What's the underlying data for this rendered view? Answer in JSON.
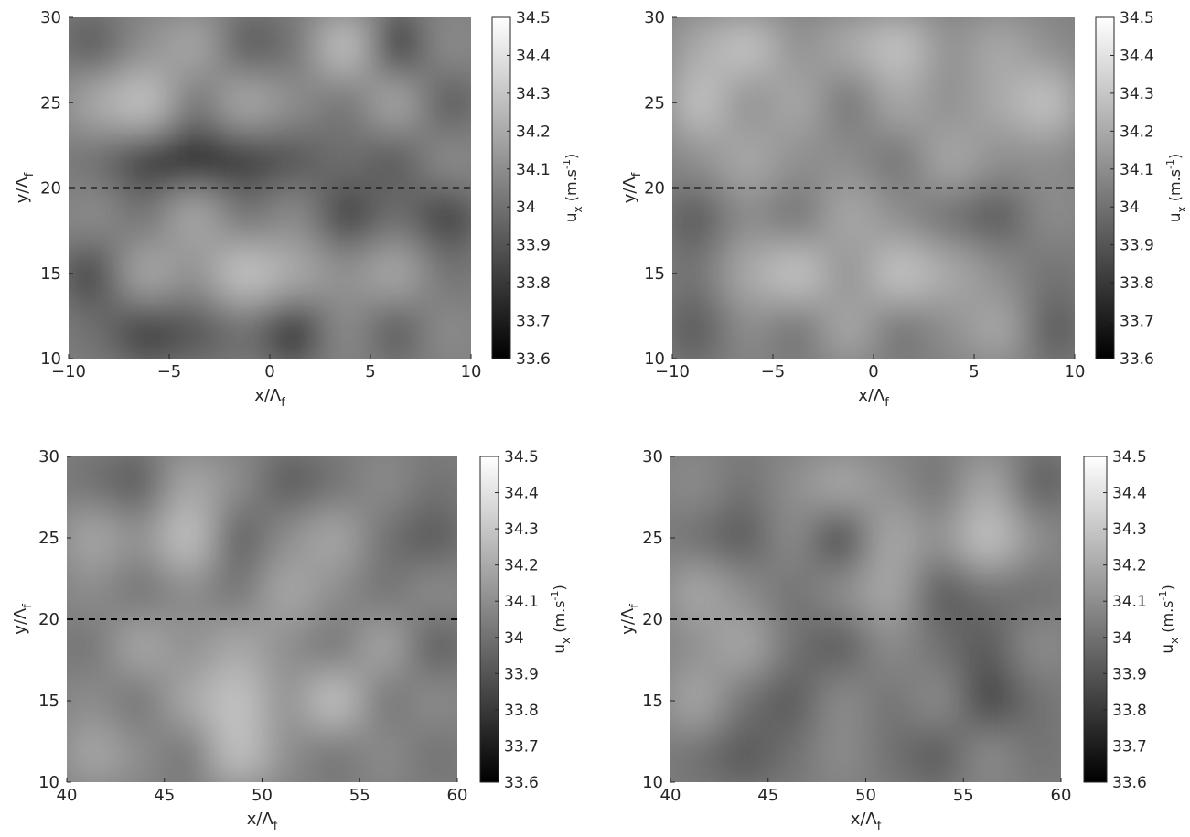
{
  "chart_data": [
    {
      "type": "heatmap",
      "xlabel": "x/Λ",
      "xlabel_sub": "f",
      "ylabel": "y/Λ",
      "ylabel_sub": "f",
      "xlim": [
        -10,
        10
      ],
      "xticks": [
        {
          "value": -10,
          "label": "−10"
        },
        {
          "value": -5,
          "label": "−5"
        },
        0,
        5,
        10
      ],
      "ylim": [
        10,
        30
      ],
      "yticks": [
        10,
        15,
        20,
        25,
        30
      ],
      "hline": 20,
      "clim": [
        33.6,
        34.5
      ],
      "cticks": [
        33.6,
        33.7,
        33.8,
        33.9,
        34,
        34.1,
        34.2,
        34.3,
        34.4,
        34.5
      ],
      "clabel": {
        "base": "u",
        "sub": "x",
        "unit": " (m.s",
        "sup": "-1",
        "close": ")"
      },
      "z": [
        [
          33.9,
          34.1,
          34.2,
          33.9,
          34.0,
          34.3,
          33.7,
          34.1
        ],
        [
          34.2,
          34.3,
          34.0,
          34.2,
          34.1,
          34.0,
          34.2,
          33.9
        ],
        [
          34.0,
          33.8,
          33.7,
          33.8,
          33.9,
          34.0,
          33.9,
          34.1
        ],
        [
          34.1,
          34.0,
          34.2,
          34.0,
          34.1,
          33.8,
          34.0,
          33.8
        ],
        [
          33.8,
          34.2,
          34.1,
          34.3,
          34.2,
          34.1,
          34.2,
          34.0
        ],
        [
          34.0,
          33.8,
          33.9,
          34.0,
          33.7,
          34.1,
          33.9,
          34.1
        ]
      ]
    },
    {
      "type": "heatmap",
      "xlabel": "x/Λ",
      "xlabel_sub": "f",
      "ylabel": "y/Λ",
      "ylabel_sub": "f",
      "xlim": [
        -10,
        10
      ],
      "xticks": [
        {
          "value": -10,
          "label": "−10"
        },
        {
          "value": -5,
          "label": "−5"
        },
        0,
        5,
        10
      ],
      "ylim": [
        10,
        30
      ],
      "yticks": [
        10,
        15,
        20,
        25,
        30
      ],
      "hline": 20,
      "clim": [
        33.6,
        34.5
      ],
      "cticks": [
        33.6,
        33.7,
        33.8,
        33.9,
        34,
        34.1,
        34.2,
        34.3,
        34.4,
        34.5
      ],
      "clabel": {
        "base": "u",
        "sub": "x",
        "unit": " (m.s",
        "sup": "-1",
        "close": ")"
      },
      "z": [
        [
          34.2,
          34.3,
          34.1,
          34.2,
          34.3,
          34.1,
          34.2,
          34.1
        ],
        [
          34.3,
          34.1,
          34.2,
          34.0,
          34.2,
          34.1,
          34.2,
          34.3
        ],
        [
          34.1,
          34.2,
          34.1,
          34.1,
          34.0,
          34.2,
          34.1,
          34.1
        ],
        [
          33.9,
          34.1,
          34.0,
          34.2,
          34.1,
          34.0,
          33.9,
          34.1
        ],
        [
          34.0,
          34.2,
          34.3,
          34.1,
          34.3,
          34.2,
          34.1,
          34.0
        ],
        [
          33.9,
          34.1,
          34.0,
          34.2,
          34.0,
          34.1,
          34.2,
          33.9
        ]
      ]
    },
    {
      "type": "heatmap",
      "xlabel": "x/Λ",
      "xlabel_sub": "f",
      "ylabel": "y/Λ",
      "ylabel_sub": "f",
      "xlim": [
        40,
        60
      ],
      "xticks": [
        40,
        45,
        50,
        55,
        60
      ],
      "ylim": [
        10,
        30
      ],
      "yticks": [
        10,
        15,
        20,
        25,
        30
      ],
      "hline": 20,
      "clim": [
        33.6,
        34.5
      ],
      "cticks": [
        33.6,
        33.7,
        33.8,
        33.9,
        34,
        34.1,
        34.2,
        34.3,
        34.4,
        34.5
      ],
      "clabel": {
        "base": "u",
        "sub": "x",
        "unit": " (m.s",
        "sup": "-1",
        "close": ")"
      },
      "z": [
        [
          34.0,
          33.9,
          34.2,
          34.1,
          33.9,
          34.0,
          34.1,
          34.0
        ],
        [
          34.2,
          34.1,
          34.3,
          33.9,
          34.1,
          34.2,
          34.0,
          33.9
        ],
        [
          34.1,
          34.0,
          34.1,
          34.0,
          34.2,
          34.1,
          34.0,
          34.1
        ],
        [
          34.0,
          34.2,
          34.1,
          34.2,
          34.1,
          34.0,
          34.2,
          33.9
        ],
        [
          34.1,
          34.0,
          34.2,
          34.3,
          34.1,
          34.3,
          34.0,
          34.1
        ],
        [
          34.2,
          34.1,
          34.0,
          34.3,
          34.1,
          34.0,
          34.1,
          34.0
        ]
      ]
    },
    {
      "type": "heatmap",
      "xlabel": "x/Λ",
      "xlabel_sub": "f",
      "ylabel": "y/Λ",
      "ylabel_sub": "f",
      "xlim": [
        40,
        60
      ],
      "xticks": [
        40,
        45,
        50,
        55,
        60
      ],
      "ylim": [
        10,
        30
      ],
      "yticks": [
        10,
        15,
        20,
        25,
        30
      ],
      "hline": 20,
      "clim": [
        33.6,
        34.5
      ],
      "cticks": [
        33.6,
        33.7,
        33.8,
        33.9,
        34,
        34.1,
        34.2,
        34.3,
        34.4,
        34.5
      ],
      "clabel": {
        "base": "u",
        "sub": "x",
        "unit": " (m.s",
        "sup": "-1",
        "close": ")"
      },
      "z": [
        [
          34.1,
          34.0,
          34.1,
          34.2,
          34.1,
          34.0,
          34.2,
          33.9
        ],
        [
          34.0,
          33.9,
          34.1,
          33.8,
          34.2,
          34.1,
          34.3,
          34.1
        ],
        [
          34.2,
          34.1,
          34.0,
          34.1,
          34.2,
          33.9,
          34.0,
          34.0
        ],
        [
          34.1,
          34.2,
          34.0,
          33.9,
          34.1,
          34.0,
          33.9,
          34.1
        ],
        [
          34.2,
          34.0,
          33.9,
          34.1,
          34.0,
          34.1,
          33.8,
          34.0
        ],
        [
          34.0,
          33.9,
          34.0,
          34.1,
          34.0,
          33.9,
          34.1,
          34.0
        ]
      ]
    }
  ]
}
